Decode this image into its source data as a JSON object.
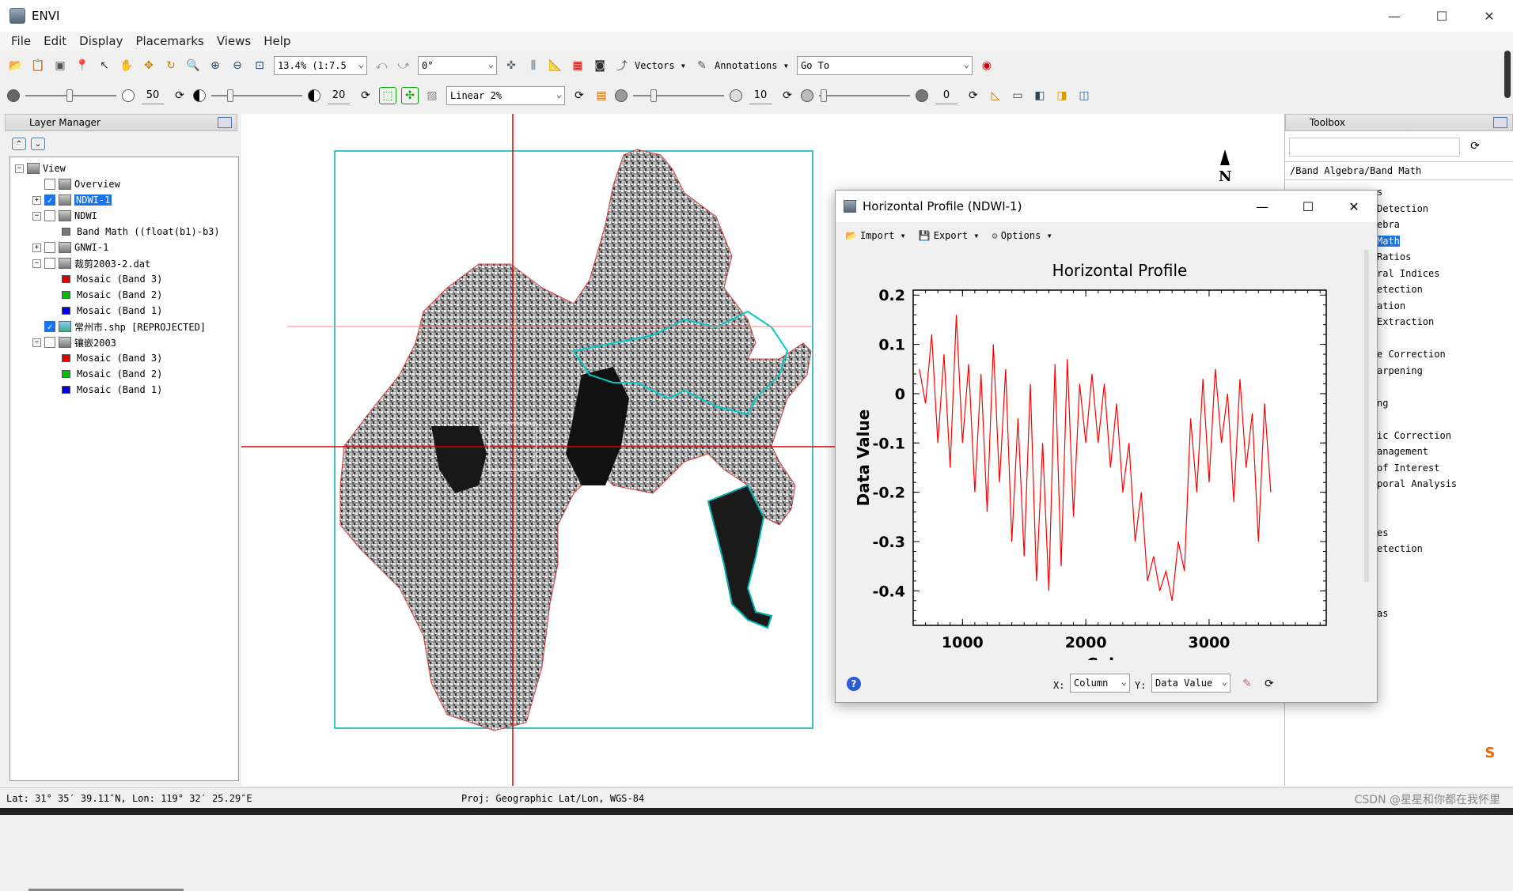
{
  "app": {
    "title": "ENVI"
  },
  "menu": [
    "File",
    "Edit",
    "Display",
    "Placemarks",
    "Views",
    "Help"
  ],
  "toolbar1": {
    "zoom_value": "13.4% (1:7.5",
    "rotation_value": "0°",
    "vectors_label": "Vectors",
    "annotations_label": "Annotations",
    "goto_value": "Go To"
  },
  "toolbar2": {
    "brightness": "50",
    "contrast": "20",
    "stretch": "Linear 2%",
    "sharpen": "10",
    "transparency": "0"
  },
  "layer_manager": {
    "title": "Layer Manager",
    "nodes": [
      {
        "label": "View",
        "level": 0,
        "exp": "−",
        "checkbox": "none",
        "icon": "view"
      },
      {
        "label": "Overview",
        "level": 1,
        "exp": "",
        "checkbox": "off",
        "icon": "view"
      },
      {
        "label": "NDWI-1",
        "level": 1,
        "exp": "+",
        "checkbox": "on",
        "icon": "raster",
        "selected": true
      },
      {
        "label": "NDWI",
        "level": 1,
        "exp": "−",
        "checkbox": "off",
        "icon": "raster"
      },
      {
        "label": "Band Math ((float(b1)-b3)",
        "level": 2,
        "exp": "",
        "checkbox": "none",
        "icon": "band",
        "color": "#777777"
      },
      {
        "label": "GNWI-1",
        "level": 1,
        "exp": "+",
        "checkbox": "off",
        "icon": "raster"
      },
      {
        "label": "裁剪2003-2.dat",
        "level": 1,
        "exp": "−",
        "checkbox": "off",
        "icon": "raster"
      },
      {
        "label": "Mosaic (Band 3)",
        "level": 2,
        "exp": "",
        "checkbox": "none",
        "icon": "band",
        "color": "#e00000"
      },
      {
        "label": "Mosaic (Band 2)",
        "level": 2,
        "exp": "",
        "checkbox": "none",
        "icon": "band",
        "color": "#00c000"
      },
      {
        "label": "Mosaic (Band 1)",
        "level": 2,
        "exp": "",
        "checkbox": "none",
        "icon": "band",
        "color": "#0000e0"
      },
      {
        "label": "常州市.shp [REPROJECTED]",
        "level": 1,
        "exp": "",
        "checkbox": "on",
        "icon": "vector"
      },
      {
        "label": "镶嵌2003",
        "level": 1,
        "exp": "−",
        "checkbox": "off",
        "icon": "raster"
      },
      {
        "label": "Mosaic (Band 3)",
        "level": 2,
        "exp": "",
        "checkbox": "none",
        "icon": "band",
        "color": "#e00000"
      },
      {
        "label": "Mosaic (Band 2)",
        "level": 2,
        "exp": "",
        "checkbox": "none",
        "icon": "band",
        "color": "#00c000"
      },
      {
        "label": "Mosaic (Band 1)",
        "level": 2,
        "exp": "",
        "checkbox": "none",
        "icon": "band",
        "color": "#0000e0"
      }
    ]
  },
  "toolbox": {
    "title": "Toolbox",
    "path": "/Band Algebra/Band Math",
    "items": [
      "s",
      "Detection",
      "ebra",
      "Math",
      "Ratios",
      "ral Indices",
      "etection",
      "ation",
      "Extraction",
      "",
      "e Correction",
      "arpening",
      "",
      "ng",
      "",
      "ic Correction",
      "anagement",
      "of Interest",
      "poral Analysis",
      "",
      "",
      "es",
      "etection",
      "",
      "",
      "",
      "as"
    ]
  },
  "profile_window": {
    "title": "Horizontal Profile (NDWI-1)",
    "import_label": "Import",
    "export_label": "Export",
    "options_label": "Options",
    "x_label": "X:",
    "x_value": "Column",
    "y_label": "Y:",
    "y_value": "Data Value"
  },
  "chart_data": {
    "type": "line",
    "title": "Horizontal Profile",
    "xlabel": "Column",
    "ylabel": "Data Value",
    "xlim": [
      600,
      3950
    ],
    "ylim": [
      -0.47,
      0.21
    ],
    "xticks": [
      1000,
      2000,
      3000
    ],
    "yticks": [
      0.2,
      0.1,
      0.0,
      -0.1,
      -0.2,
      -0.3,
      -0.4
    ],
    "series": [
      {
        "color": "#ff0000",
        "values": [
          [
            650,
            0.05
          ],
          [
            700,
            -0.02
          ],
          [
            750,
            0.12
          ],
          [
            800,
            -0.1
          ],
          [
            850,
            0.08
          ],
          [
            900,
            -0.15
          ],
          [
            950,
            0.16
          ],
          [
            1000,
            -0.1
          ],
          [
            1050,
            0.06
          ],
          [
            1100,
            -0.2
          ],
          [
            1150,
            0.04
          ],
          [
            1200,
            -0.24
          ],
          [
            1250,
            0.1
          ],
          [
            1300,
            -0.18
          ],
          [
            1350,
            0.05
          ],
          [
            1400,
            -0.3
          ],
          [
            1450,
            -0.05
          ],
          [
            1500,
            -0.33
          ],
          [
            1550,
            0.02
          ],
          [
            1600,
            -0.38
          ],
          [
            1650,
            -0.1
          ],
          [
            1700,
            -0.4
          ],
          [
            1750,
            0.06
          ],
          [
            1800,
            -0.35
          ],
          [
            1850,
            0.07
          ],
          [
            1900,
            -0.25
          ],
          [
            1950,
            0.02
          ],
          [
            2000,
            -0.1
          ],
          [
            2050,
            0.04
          ],
          [
            2100,
            -0.1
          ],
          [
            2150,
            0.02
          ],
          [
            2200,
            -0.15
          ],
          [
            2250,
            -0.02
          ],
          [
            2300,
            -0.2
          ],
          [
            2350,
            -0.1
          ],
          [
            2400,
            -0.3
          ],
          [
            2450,
            -0.2
          ],
          [
            2500,
            -0.38
          ],
          [
            2550,
            -0.33
          ],
          [
            2600,
            -0.4
          ],
          [
            2650,
            -0.36
          ],
          [
            2700,
            -0.42
          ],
          [
            2750,
            -0.3
          ],
          [
            2800,
            -0.36
          ],
          [
            2850,
            -0.05
          ],
          [
            2900,
            -0.2
          ],
          [
            2950,
            0.03
          ],
          [
            3000,
            -0.18
          ],
          [
            3050,
            0.05
          ],
          [
            3100,
            -0.1
          ],
          [
            3150,
            0.0
          ],
          [
            3200,
            -0.22
          ],
          [
            3250,
            0.03
          ],
          [
            3300,
            -0.15
          ],
          [
            3350,
            -0.04
          ],
          [
            3400,
            -0.3
          ],
          [
            3450,
            -0.02
          ],
          [
            3500,
            -0.2
          ]
        ]
      }
    ]
  },
  "status": {
    "coords": "Lat: 31° 35′ 39.11″N, Lon: 119° 32′ 25.29″E",
    "proj": "Proj: Geographic Lat/Lon, WGS-84",
    "watermark": "CSDN @星星和你都在我怀里"
  }
}
